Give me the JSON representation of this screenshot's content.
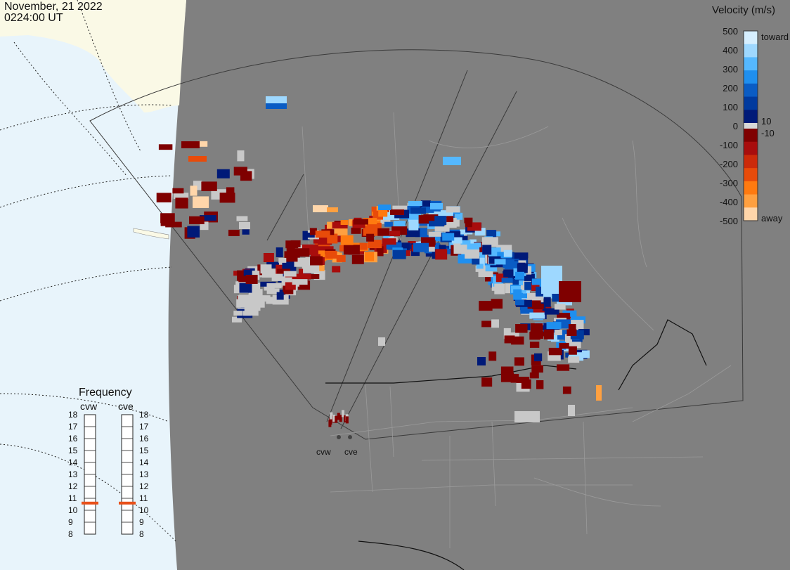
{
  "header": {
    "date": "November, 21 2022",
    "time": "0224:00 UT"
  },
  "velocity_legend": {
    "title": "Velocity (m/s)",
    "ticks": [
      "500",
      "400",
      "300",
      "200",
      "100",
      "0",
      "-100",
      "-200",
      "-300",
      "-400",
      "-500"
    ],
    "toward_label": "toward",
    "away_label": "away",
    "plus_label": "10",
    "minus_label": "-10",
    "colors_toward": [
      "#d6efff",
      "#9ed8ff",
      "#55b8ff",
      "#1f8fef",
      "#0a5cc4",
      "#003a9e",
      "#001a78"
    ],
    "colors_away": [
      "#7f0000",
      "#a80d0d",
      "#cc2a0a",
      "#e84b0a",
      "#ff7a10",
      "#ffa040",
      "#ffd6aa"
    ]
  },
  "frequency": {
    "title": "Frequency",
    "radars": [
      {
        "name": "cvw",
        "value": 10.6
      },
      {
        "name": "cve",
        "value": 10.6
      }
    ],
    "scale": [
      "18",
      "17",
      "16",
      "15",
      "14",
      "13",
      "12",
      "11",
      "10",
      "9",
      "8"
    ],
    "marker_color": "#e8501a"
  },
  "radar_sites": [
    "cvw",
    "cve"
  ],
  "colors": {
    "ocean": "#e8f4fb",
    "land_outside": "#faf9e6",
    "map_field": "#808080",
    "boundaries": "#9a9a9a",
    "coast": "#1a1a1a",
    "groundscatter": "#c8c8c8"
  }
}
